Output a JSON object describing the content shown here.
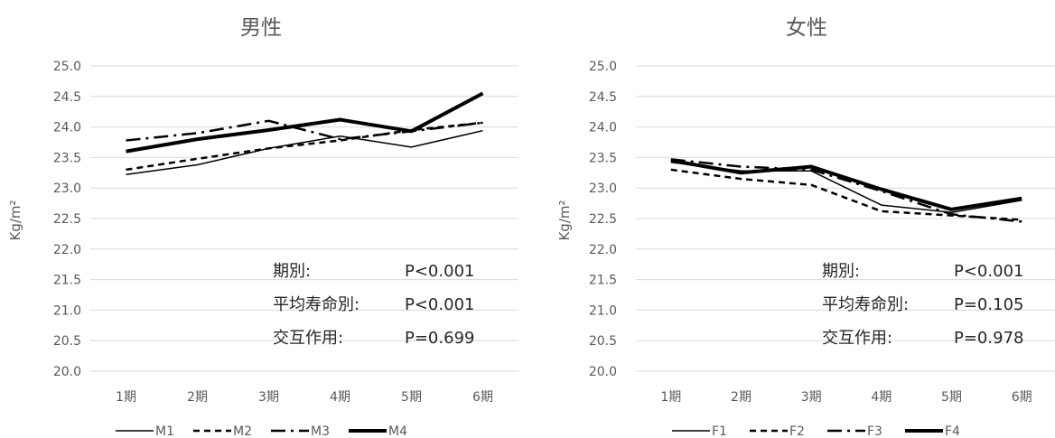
{
  "chart_data": [
    {
      "type": "line",
      "title": "男性",
      "xlabel": "",
      "ylabel": "Kg/m²",
      "ylim": [
        20.0,
        25.0
      ],
      "yticks": [
        "25.0",
        "24.5",
        "24.0",
        "23.5",
        "23.0",
        "22.5",
        "22.0",
        "21.5",
        "21.0",
        "20.5",
        "20.0"
      ],
      "categories": [
        "1期",
        "2期",
        "3期",
        "4期",
        "5期",
        "6期"
      ],
      "series": [
        {
          "name": "M1",
          "values": [
            23.22,
            23.38,
            23.65,
            23.85,
            23.67,
            23.94
          ]
        },
        {
          "name": "M2",
          "values": [
            23.3,
            23.48,
            23.65,
            23.78,
            23.95,
            24.07
          ]
        },
        {
          "name": "M3",
          "values": [
            23.78,
            23.9,
            24.1,
            23.8,
            23.93,
            24.07
          ]
        },
        {
          "name": "M4",
          "values": [
            23.6,
            23.8,
            23.95,
            24.12,
            23.93,
            24.55
          ]
        }
      ],
      "annotations": [
        {
          "label": "期別:",
          "value": "P<0.001"
        },
        {
          "label": "平均寿命別:",
          "value": "P<0.001"
        },
        {
          "label": "交互作用:",
          "value": "P=0.699"
        }
      ],
      "legend": "bottom",
      "grid": true
    },
    {
      "type": "line",
      "title": "女性",
      "xlabel": "",
      "ylabel": "Kg/m²",
      "ylim": [
        20.0,
        25.0
      ],
      "yticks": [
        "25.0",
        "24.5",
        "24.0",
        "23.5",
        "23.0",
        "22.5",
        "22.0",
        "21.5",
        "21.0",
        "20.5",
        "20.0"
      ],
      "categories": [
        "1期",
        "2期",
        "3期",
        "4期",
        "5期",
        "6期"
      ],
      "series": [
        {
          "name": "F1",
          "values": [
            23.42,
            23.28,
            23.28,
            22.72,
            22.6,
            22.8
          ]
        },
        {
          "name": "F2",
          "values": [
            23.3,
            23.15,
            23.05,
            22.62,
            22.55,
            22.48
          ]
        },
        {
          "name": "F3",
          "values": [
            23.47,
            23.35,
            23.3,
            22.95,
            22.57,
            22.45
          ]
        },
        {
          "name": "F4",
          "values": [
            23.45,
            23.25,
            23.35,
            22.98,
            22.65,
            22.83
          ]
        }
      ],
      "annotations": [
        {
          "label": "期別:",
          "value": "P<0.001"
        },
        {
          "label": "平均寿命別:",
          "value": "P=0.105"
        },
        {
          "label": "交互作用:",
          "value": "P=0.978"
        }
      ],
      "legend": "bottom",
      "grid": true
    }
  ]
}
